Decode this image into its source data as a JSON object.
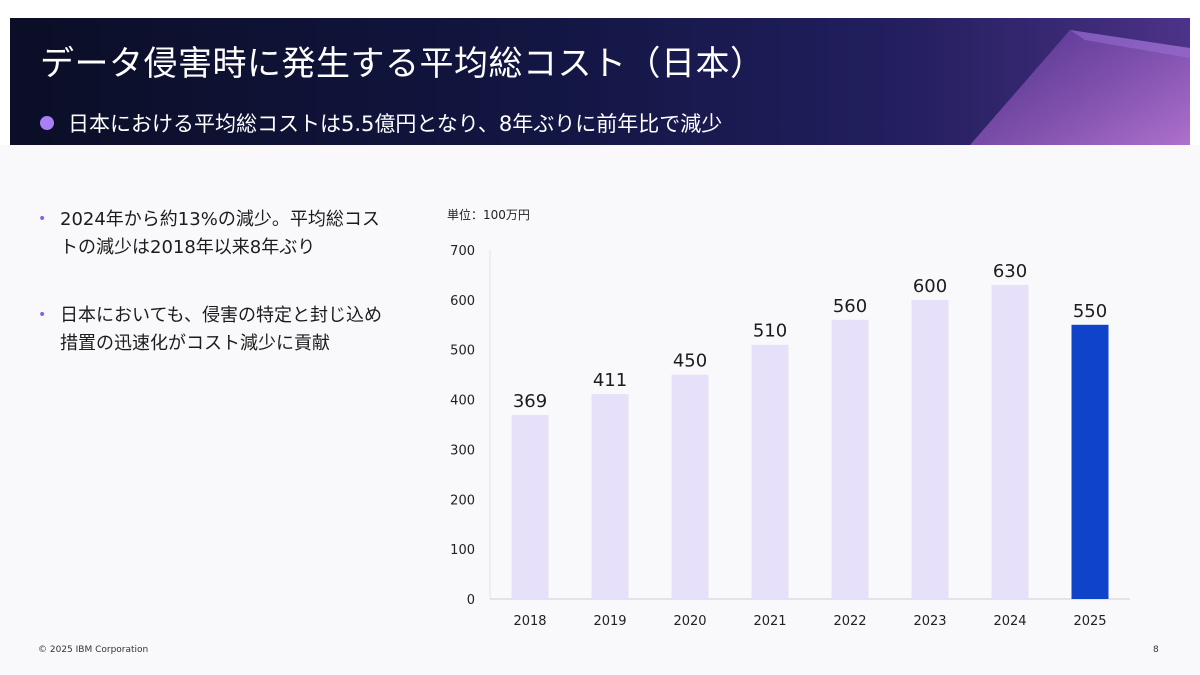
{
  "banner": {
    "title": "データ侵害時に発生する平均総コスト（日本）",
    "subtitle": "日本における平均総コストは5.5億円となり、8年ぶりに前年比で減少"
  },
  "bullets": [
    {
      "text": "2024年から約13%の減少。平均総コストの減少は2018年以来8年ぶり"
    },
    {
      "text": "日本においても、侵害の特定と封じ込め措置の迅速化がコスト減少に貢献"
    }
  ],
  "unit_label": "単位：100万円",
  "footer": {
    "copyright": "© 2025 IBM Corporation",
    "page_number": "8"
  },
  "colors": {
    "bar_default": "#e7e0fa",
    "bar_highlight": "#0f43c9",
    "accent_purple": "#a87ff5"
  },
  "chart_data": {
    "type": "bar",
    "categories": [
      "2018",
      "2019",
      "2020",
      "2021",
      "2022",
      "2023",
      "2024",
      "2025"
    ],
    "values": [
      369,
      411,
      450,
      510,
      560,
      600,
      630,
      550
    ],
    "highlight_category": "2025",
    "ylim": [
      0,
      700
    ],
    "yticks": [
      0,
      100,
      200,
      300,
      400,
      500,
      600,
      700
    ],
    "grid": false,
    "title": "",
    "xlabel": "",
    "ylabel": "単位：100万円"
  }
}
